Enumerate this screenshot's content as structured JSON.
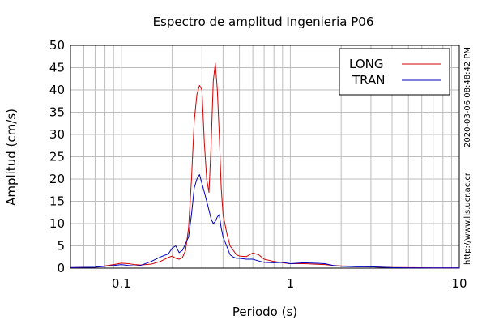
{
  "chart_data": {
    "type": "line",
    "title": "Espectro de amplitud Ingenieria P06",
    "xlabel": "Periodo (s)",
    "ylabel": "Amplitud (cm/s)",
    "x_scale": "log",
    "xlim": [
      0.05,
      10
    ],
    "ylim": [
      0,
      50
    ],
    "grid": true,
    "legend_position": "top-right",
    "x_ticks": [
      {
        "value": 0.1,
        "label": "0.1"
      },
      {
        "value": 1,
        "label": "1"
      },
      {
        "value": 10,
        "label": "10"
      }
    ],
    "y_ticks": [
      {
        "value": 0,
        "label": "0"
      },
      {
        "value": 5,
        "label": "5"
      },
      {
        "value": 10,
        "label": "10"
      },
      {
        "value": 15,
        "label": "15"
      },
      {
        "value": 20,
        "label": "20"
      },
      {
        "value": 25,
        "label": "25"
      },
      {
        "value": 30,
        "label": "30"
      },
      {
        "value": 35,
        "label": "35"
      },
      {
        "value": 40,
        "label": "40"
      },
      {
        "value": 45,
        "label": "45"
      },
      {
        "value": 50,
        "label": "50"
      }
    ],
    "series": [
      {
        "name": "LONG",
        "color": "#d00000",
        "x": [
          0.05,
          0.07,
          0.08,
          0.09,
          0.1,
          0.11,
          0.12,
          0.13,
          0.15,
          0.17,
          0.19,
          0.2,
          0.21,
          0.22,
          0.23,
          0.24,
          0.25,
          0.26,
          0.27,
          0.28,
          0.29,
          0.3,
          0.31,
          0.32,
          0.33,
          0.34,
          0.35,
          0.36,
          0.37,
          0.38,
          0.39,
          0.4,
          0.42,
          0.44,
          0.46,
          0.48,
          0.5,
          0.55,
          0.6,
          0.65,
          0.7,
          0.8,
          0.9,
          1.0,
          1.2,
          1.4,
          1.6,
          1.8,
          2.0,
          2.5,
          3.0,
          4.0,
          5.0,
          7.0,
          10.0
        ],
        "y": [
          0.1,
          0.2,
          0.5,
          0.8,
          1.1,
          1.0,
          0.8,
          0.7,
          0.9,
          1.5,
          2.4,
          2.7,
          2.2,
          2.0,
          2.4,
          4.0,
          9.0,
          20.0,
          33.0,
          39.0,
          41.0,
          40.0,
          28.0,
          20.0,
          17.0,
          28.0,
          42.0,
          46.0,
          40.0,
          30.0,
          18.0,
          12.0,
          8.0,
          5.0,
          4.0,
          3.0,
          2.7,
          2.6,
          3.4,
          3.0,
          2.0,
          1.5,
          1.2,
          1.0,
          1.0,
          0.9,
          0.8,
          0.6,
          0.5,
          0.4,
          0.3,
          0.15,
          0.1,
          0.05,
          0.05
        ]
      },
      {
        "name": "TRAN",
        "color": "#0000c0",
        "x": [
          0.05,
          0.07,
          0.08,
          0.09,
          0.1,
          0.11,
          0.12,
          0.13,
          0.15,
          0.17,
          0.19,
          0.2,
          0.21,
          0.22,
          0.23,
          0.24,
          0.25,
          0.26,
          0.27,
          0.28,
          0.29,
          0.3,
          0.31,
          0.32,
          0.33,
          0.34,
          0.35,
          0.36,
          0.37,
          0.38,
          0.39,
          0.4,
          0.42,
          0.44,
          0.46,
          0.48,
          0.5,
          0.55,
          0.6,
          0.65,
          0.7,
          0.8,
          0.9,
          1.0,
          1.2,
          1.4,
          1.6,
          1.8,
          2.0,
          2.5,
          3.0,
          4.0,
          5.0,
          7.0,
          10.0
        ],
        "y": [
          0.1,
          0.2,
          0.4,
          0.6,
          0.8,
          0.6,
          0.5,
          0.6,
          1.5,
          2.5,
          3.2,
          4.5,
          5.0,
          3.5,
          4.0,
          5.5,
          7.0,
          12.0,
          18.0,
          20.0,
          21.0,
          19.0,
          17.0,
          15.0,
          13.0,
          11.0,
          10.0,
          10.5,
          11.5,
          12.0,
          9.0,
          7.0,
          5.0,
          3.0,
          2.5,
          2.2,
          2.2,
          2.0,
          2.0,
          1.6,
          1.3,
          1.2,
          1.3,
          1.0,
          1.2,
          1.1,
          1.0,
          0.6,
          0.4,
          0.3,
          0.3,
          0.1,
          0.05,
          0.05,
          0.05
        ]
      }
    ]
  },
  "side_text": {
    "timestamp": "2020-03-06 08:48:42 PM",
    "url": "http://www.lis.ucr.ac.cr"
  }
}
